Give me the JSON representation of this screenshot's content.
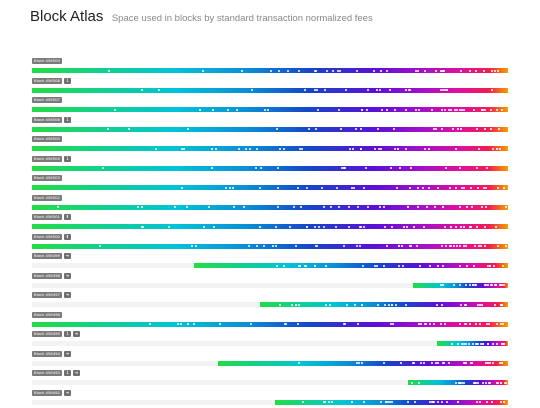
{
  "header": {
    "title": "Block Atlas",
    "subtitle": "Space used in blocks by standard transaction normalized fees"
  },
  "colors": {
    "gradient": [
      "#22dd44",
      "#00c3d8",
      "#0a8fd6",
      "#1547c8",
      "#5a10d8",
      "#a410c8",
      "#e0109a",
      "#f01e50",
      "#f5a000"
    ]
  },
  "blocks": [
    {
      "label": "Block 456509",
      "badges": [],
      "fill_start": 0.0,
      "dot_density": 1.0
    },
    {
      "label": "Block 456508",
      "badges": [
        "1"
      ],
      "fill_start": 0.0,
      "dot_density": 0.5
    },
    {
      "label": "Block 456507",
      "badges": [],
      "fill_start": 0.0,
      "dot_density": 1.2
    },
    {
      "label": "Block 456506",
      "badges": [
        "1"
      ],
      "fill_start": 0.0,
      "dot_density": 0.5
    },
    {
      "label": "Block 456505",
      "badges": [],
      "fill_start": 0.0,
      "dot_density": 1.0
    },
    {
      "label": "Block 456504",
      "badges": [
        "1"
      ],
      "fill_start": 0.0,
      "dot_density": 0.3
    },
    {
      "label": "Block 456503",
      "badges": [],
      "fill_start": 0.0,
      "dot_density": 0.9
    },
    {
      "label": "Block 456502",
      "badges": [],
      "fill_start": 0.0,
      "dot_density": 1.0
    },
    {
      "label": "Block 456501",
      "badges": [
        "⬆"
      ],
      "fill_start": 0.0,
      "dot_density": 1.1
    },
    {
      "label": "Block 456500",
      "badges": [
        "⬆"
      ],
      "fill_start": 0.0,
      "dot_density": 1.2
    },
    {
      "label": "Block 456499",
      "badges": [
        "➔"
      ],
      "fill_start": 0.34,
      "dot_density": 0.8
    },
    {
      "label": "Block 456498",
      "badges": [
        "➔"
      ],
      "fill_start": 0.8,
      "dot_density": 0.6
    },
    {
      "label": "Block 456497",
      "badges": [
        "➔"
      ],
      "fill_start": 0.48,
      "dot_density": 1.0
    },
    {
      "label": "Block 456496",
      "badges": [],
      "fill_start": 0.0,
      "dot_density": 1.1
    },
    {
      "label": "Block 456495",
      "badges": [
        "1",
        "➔"
      ],
      "fill_start": 0.85,
      "dot_density": 0.5
    },
    {
      "label": "Block 456494",
      "badges": [
        "➔"
      ],
      "fill_start": 0.39,
      "dot_density": 0.8
    },
    {
      "label": "Block 456493",
      "badges": [
        "1",
        "➔"
      ],
      "fill_start": 0.79,
      "dot_density": 0.6
    },
    {
      "label": "Block 456492",
      "badges": [
        "➔"
      ],
      "fill_start": 0.51,
      "dot_density": 0.9
    }
  ]
}
